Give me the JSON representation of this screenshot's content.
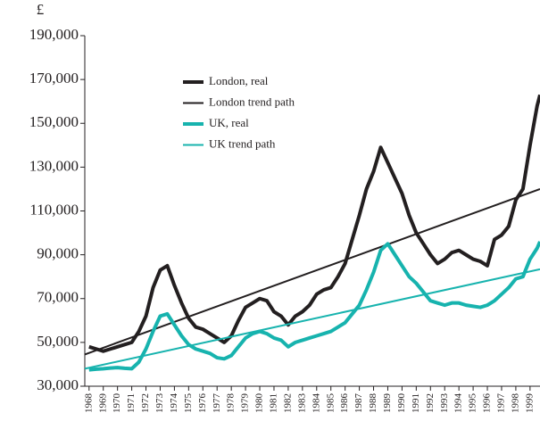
{
  "chart_data": {
    "type": "line",
    "y_label": "£",
    "xlim": [
      1967.7,
      1999.7
    ],
    "xticks": [
      1968,
      1969,
      1970,
      1971,
      1972,
      1973,
      1974,
      1975,
      1976,
      1977,
      1978,
      1979,
      1980,
      1981,
      1982,
      1983,
      1984,
      1985,
      1986,
      1987,
      1988,
      1989,
      1990,
      1991,
      1992,
      1993,
      1994,
      1995,
      1996,
      1997,
      1998,
      1999
    ],
    "ylim": [
      30000,
      190000
    ],
    "yticks": [
      {
        "value": 30000,
        "label": "30,000"
      },
      {
        "value": 50000,
        "label": "50,000"
      },
      {
        "value": 70000,
        "label": "70,000"
      },
      {
        "value": 90000,
        "label": "90,000"
      },
      {
        "value": 110000,
        "label": "110,000"
      },
      {
        "value": 130000,
        "label": "130,000"
      },
      {
        "value": 150000,
        "label": "150,000"
      },
      {
        "value": 170000,
        "label": "170,000"
      },
      {
        "value": 190000,
        "label": "190,000"
      }
    ],
    "legend": "upper-left",
    "series": [
      {
        "name": "London, real",
        "color": "#231f20",
        "line_width": 4,
        "x": [
          1968,
          1968.5,
          1969,
          1969.5,
          1970,
          1970.5,
          1971,
          1971.5,
          1972,
          1972.5,
          1973,
          1973.5,
          1974,
          1974.5,
          1975,
          1975.5,
          1976,
          1976.5,
          1977,
          1977.5,
          1978,
          1978.5,
          1979,
          1979.5,
          1980,
          1980.5,
          1981,
          1981.5,
          1982,
          1982.5,
          1983,
          1983.5,
          1984,
          1984.5,
          1985,
          1985.5,
          1986,
          1986.5,
          1987,
          1987.5,
          1988,
          1988.5,
          1989,
          1989.5,
          1990,
          1990.5,
          1991,
          1991.5,
          1992,
          1992.5,
          1993,
          1993.5,
          1994,
          1994.5,
          1995,
          1995.5,
          1996,
          1996.5,
          1997,
          1997.5,
          1998,
          1998.5,
          1999,
          1999.5,
          1999.7
        ],
        "values": [
          48000,
          47000,
          46000,
          47000,
          48000,
          49000,
          50000,
          55000,
          62000,
          75000,
          83000,
          85000,
          76000,
          68000,
          61000,
          57000,
          56000,
          54000,
          52000,
          50000,
          53000,
          60000,
          66000,
          68000,
          70000,
          69000,
          64000,
          62000,
          58000,
          62000,
          64000,
          67000,
          72000,
          74000,
          75000,
          80000,
          86000,
          97000,
          108000,
          120000,
          128000,
          139000,
          132000,
          125000,
          118000,
          108000,
          100000,
          95000,
          90000,
          86000,
          88000,
          91000,
          92000,
          90000,
          88000,
          87000,
          85000,
          97000,
          99000,
          103000,
          115000,
          120000,
          140000,
          158000,
          163000
        ]
      },
      {
        "name": "London trend path",
        "color": "#231f20",
        "line_width": 2,
        "x": [
          1967.7,
          1999.7
        ],
        "values": [
          44500,
          120000
        ]
      },
      {
        "name": "UK, real",
        "color": "#17b3ae",
        "line_width": 4,
        "x": [
          1968,
          1968.5,
          1969,
          1969.5,
          1970,
          1970.5,
          1971,
          1971.5,
          1972,
          1972.5,
          1973,
          1973.5,
          1974,
          1974.5,
          1975,
          1975.5,
          1976,
          1976.5,
          1977,
          1977.5,
          1978,
          1978.5,
          1979,
          1979.5,
          1980,
          1980.5,
          1981,
          1981.5,
          1982,
          1982.5,
          1983,
          1983.5,
          1984,
          1984.5,
          1985,
          1985.5,
          1986,
          1986.5,
          1987,
          1987.5,
          1988,
          1988.5,
          1989,
          1989.5,
          1990,
          1990.5,
          1991,
          1991.5,
          1992,
          1992.5,
          1993,
          1993.5,
          1994,
          1994.5,
          1995,
          1995.5,
          1996,
          1996.5,
          1997,
          1997.5,
          1998,
          1998.5,
          1999,
          1999.5,
          1999.7
        ],
        "values": [
          37500,
          37800,
          38000,
          38300,
          38500,
          38200,
          38000,
          41000,
          47000,
          55000,
          62000,
          63000,
          58000,
          53000,
          49000,
          47000,
          46000,
          45000,
          43000,
          42500,
          44000,
          48000,
          52000,
          54000,
          55000,
          54000,
          52000,
          51000,
          48000,
          50000,
          51000,
          52000,
          53000,
          54000,
          55000,
          57000,
          59000,
          63000,
          67000,
          74000,
          82000,
          92000,
          95000,
          90000,
          85000,
          80000,
          77000,
          73000,
          69000,
          68000,
          67000,
          68000,
          68000,
          67000,
          66500,
          66000,
          67000,
          69000,
          72000,
          75000,
          79000,
          80000,
          88000,
          93000,
          96000
        ]
      },
      {
        "name": "UK trend path",
        "color": "#17b3ae",
        "line_width": 2,
        "x": [
          1967.7,
          1999.7
        ],
        "values": [
          38000,
          83400
        ]
      }
    ]
  }
}
